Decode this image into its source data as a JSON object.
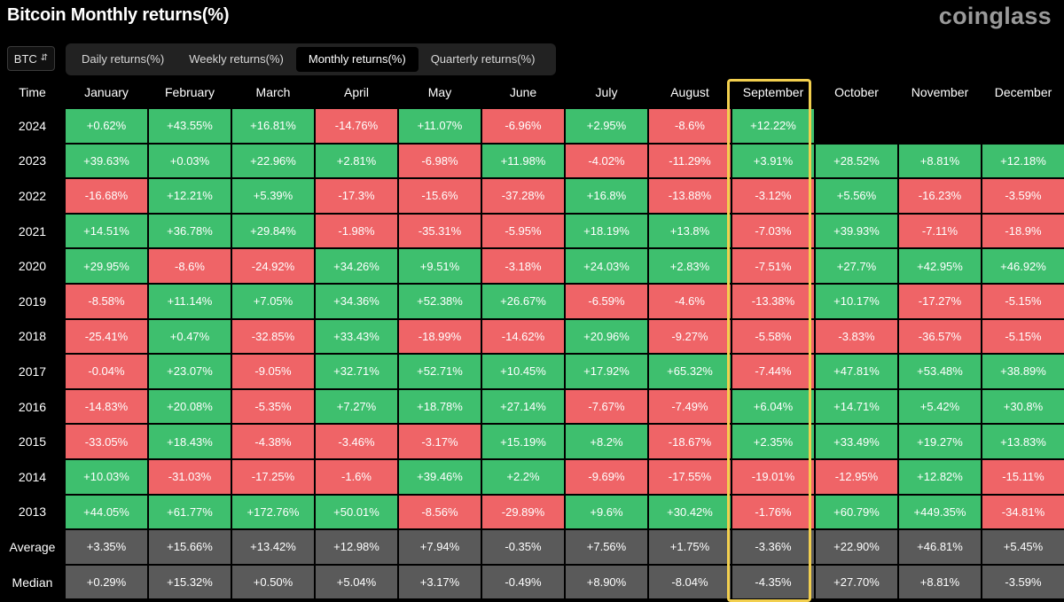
{
  "header": {
    "title": "Bitcoin Monthly returns(%)",
    "brand": "coinglass"
  },
  "toolbar": {
    "symbol": "BTC",
    "tabs": [
      {
        "label": "Daily returns(%)",
        "active": false
      },
      {
        "label": "Weekly returns(%)",
        "active": false
      },
      {
        "label": "Monthly returns(%)",
        "active": true
      },
      {
        "label": "Quarterly returns(%)",
        "active": false
      }
    ]
  },
  "colors": {
    "positive": "#3ebf6e",
    "negative": "#ef6467",
    "summary": "#5a5a5a",
    "highlight": "#f2cf4e"
  },
  "chart_data": {
    "type": "table",
    "title": "Bitcoin Monthly returns(%)",
    "corner_label": "Time",
    "columns": [
      "January",
      "February",
      "March",
      "April",
      "May",
      "June",
      "July",
      "August",
      "September",
      "October",
      "November",
      "December"
    ],
    "highlighted_column": "September",
    "rows": [
      {
        "label": "2024",
        "values": [
          "+0.62%",
          "+43.55%",
          "+16.81%",
          "-14.76%",
          "+11.07%",
          "-6.96%",
          "+2.95%",
          "-8.6%",
          "+12.22%",
          "",
          "",
          ""
        ]
      },
      {
        "label": "2023",
        "values": [
          "+39.63%",
          "+0.03%",
          "+22.96%",
          "+2.81%",
          "-6.98%",
          "+11.98%",
          "-4.02%",
          "-11.29%",
          "+3.91%",
          "+28.52%",
          "+8.81%",
          "+12.18%"
        ]
      },
      {
        "label": "2022",
        "values": [
          "-16.68%",
          "+12.21%",
          "+5.39%",
          "-17.3%",
          "-15.6%",
          "-37.28%",
          "+16.8%",
          "-13.88%",
          "-3.12%",
          "+5.56%",
          "-16.23%",
          "-3.59%"
        ]
      },
      {
        "label": "2021",
        "values": [
          "+14.51%",
          "+36.78%",
          "+29.84%",
          "-1.98%",
          "-35.31%",
          "-5.95%",
          "+18.19%",
          "+13.8%",
          "-7.03%",
          "+39.93%",
          "-7.11%",
          "-18.9%"
        ]
      },
      {
        "label": "2020",
        "values": [
          "+29.95%",
          "-8.6%",
          "-24.92%",
          "+34.26%",
          "+9.51%",
          "-3.18%",
          "+24.03%",
          "+2.83%",
          "-7.51%",
          "+27.7%",
          "+42.95%",
          "+46.92%"
        ]
      },
      {
        "label": "2019",
        "values": [
          "-8.58%",
          "+11.14%",
          "+7.05%",
          "+34.36%",
          "+52.38%",
          "+26.67%",
          "-6.59%",
          "-4.6%",
          "-13.38%",
          "+10.17%",
          "-17.27%",
          "-5.15%"
        ]
      },
      {
        "label": "2018",
        "values": [
          "-25.41%",
          "+0.47%",
          "-32.85%",
          "+33.43%",
          "-18.99%",
          "-14.62%",
          "+20.96%",
          "-9.27%",
          "-5.58%",
          "-3.83%",
          "-36.57%",
          "-5.15%"
        ]
      },
      {
        "label": "2017",
        "values": [
          "-0.04%",
          "+23.07%",
          "-9.05%",
          "+32.71%",
          "+52.71%",
          "+10.45%",
          "+17.92%",
          "+65.32%",
          "-7.44%",
          "+47.81%",
          "+53.48%",
          "+38.89%"
        ]
      },
      {
        "label": "2016",
        "values": [
          "-14.83%",
          "+20.08%",
          "-5.35%",
          "+7.27%",
          "+18.78%",
          "+27.14%",
          "-7.67%",
          "-7.49%",
          "+6.04%",
          "+14.71%",
          "+5.42%",
          "+30.8%"
        ]
      },
      {
        "label": "2015",
        "values": [
          "-33.05%",
          "+18.43%",
          "-4.38%",
          "-3.46%",
          "-3.17%",
          "+15.19%",
          "+8.2%",
          "-18.67%",
          "+2.35%",
          "+33.49%",
          "+19.27%",
          "+13.83%"
        ]
      },
      {
        "label": "2014",
        "values": [
          "+10.03%",
          "-31.03%",
          "-17.25%",
          "-1.6%",
          "+39.46%",
          "+2.2%",
          "-9.69%",
          "-17.55%",
          "-19.01%",
          "-12.95%",
          "+12.82%",
          "-15.11%"
        ]
      },
      {
        "label": "2013",
        "values": [
          "+44.05%",
          "+61.77%",
          "+172.76%",
          "+50.01%",
          "-8.56%",
          "-29.89%",
          "+9.6%",
          "+30.42%",
          "-1.76%",
          "+60.79%",
          "+449.35%",
          "-34.81%"
        ]
      }
    ],
    "summary_rows": [
      {
        "label": "Average",
        "values": [
          "+3.35%",
          "+15.66%",
          "+13.42%",
          "+12.98%",
          "+7.94%",
          "-0.35%",
          "+7.56%",
          "+1.75%",
          "-3.36%",
          "+22.90%",
          "+46.81%",
          "+5.45%"
        ]
      },
      {
        "label": "Median",
        "values": [
          "+0.29%",
          "+15.32%",
          "+0.50%",
          "+5.04%",
          "+3.17%",
          "-0.49%",
          "+8.90%",
          "-8.04%",
          "-4.35%",
          "+27.70%",
          "+8.81%",
          "-3.59%"
        ]
      }
    ]
  }
}
